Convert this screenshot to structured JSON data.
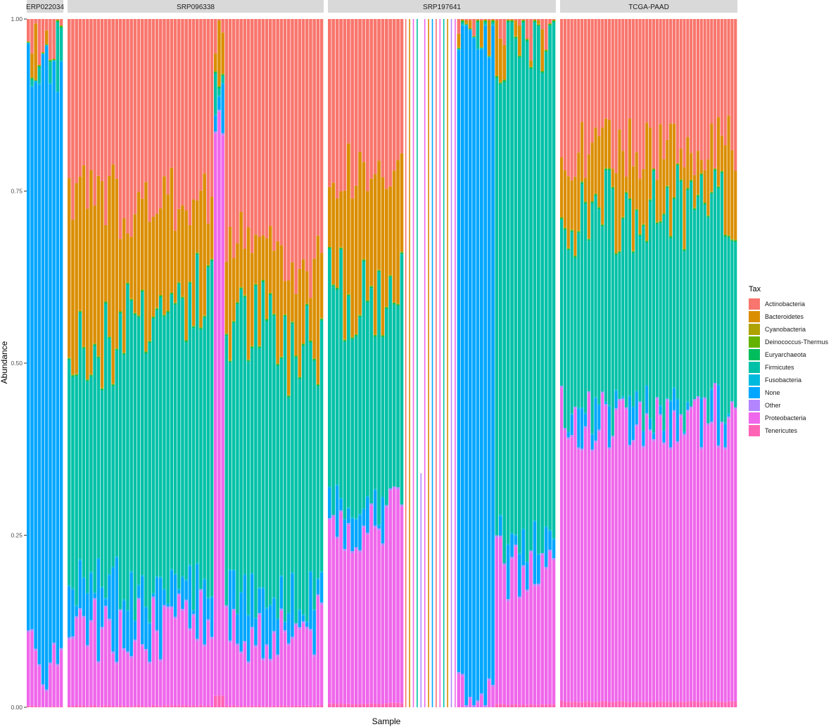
{
  "chart_data": {
    "type": "bar",
    "stacked": true,
    "xlabel": "Sample",
    "ylabel": "Abundance",
    "ylim": [
      0,
      1
    ],
    "yticks": [
      "0.00",
      "0.25",
      "0.50",
      "0.75",
      "1.00"
    ],
    "legend_title": "Tax",
    "legend_position": "right",
    "series": [
      {
        "name": "Actinobacteria",
        "color": "#F8766D"
      },
      {
        "name": "Bacteroidetes",
        "color": "#DB8E00"
      },
      {
        "name": "Cyanobacteria",
        "color": "#AEA200"
      },
      {
        "name": "Deinococcus-Thermus",
        "color": "#64B200"
      },
      {
        "name": "Euryarchaeota",
        "color": "#00BD5C"
      },
      {
        "name": "Firmicutes",
        "color": "#00C1A7"
      },
      {
        "name": "Fusobacteria",
        "color": "#00BADE"
      },
      {
        "name": "None",
        "color": "#00A6FF"
      },
      {
        "name": "Other",
        "color": "#B385FF"
      },
      {
        "name": "Proteobacteria",
        "color": "#EF67EB"
      },
      {
        "name": "Tenericutes",
        "color": "#FF63B6"
      }
    ],
    "panels": [
      {
        "name": "ERP022034",
        "segments": [
          {
            "bars": 10,
            "proteobacteria": 0.07,
            "none_top": 0.93,
            "firmicutes_top": 0.93,
            "bacteroidetes_top": 0.95
          }
        ]
      },
      {
        "name": "SRP096338",
        "segments": [
          {
            "bars": 14,
            "proteobacteria": 0.11,
            "none_top": 0.18,
            "firmicutes_top": 0.52,
            "bacteroidetes_top": 0.74
          },
          {
            "bars": 14,
            "proteobacteria": 0.11,
            "none_top": 0.16,
            "firmicutes_top": 0.58,
            "bacteroidetes_top": 0.73
          },
          {
            "bars": 12,
            "proteobacteria": 0.12,
            "none_top": 0.17,
            "firmicutes_top": 0.6,
            "bacteroidetes_top": 0.74
          },
          {
            "bars": 3,
            "proteobacteria": 0.88,
            "none_top": 0.89,
            "firmicutes_top": 0.93,
            "bacteroidetes_top": 0.98
          },
          {
            "bars": 14,
            "proteobacteria": 0.11,
            "none_top": 0.16,
            "firmicutes_top": 0.56,
            "bacteroidetes_top": 0.68
          },
          {
            "bars": 13,
            "proteobacteria": 0.12,
            "none_top": 0.16,
            "firmicutes_top": 0.52,
            "bacteroidetes_top": 0.64
          }
        ]
      },
      {
        "name": "SRP197641",
        "segments": [
          {
            "bars": 20,
            "proteobacteria": 0.27,
            "none_top": 0.29,
            "firmicutes_top": 0.6,
            "bacteroidetes_top": 0.78
          },
          {
            "bars": 14,
            "type": "single",
            "note": "thin single-taxon bars"
          },
          {
            "bars": 10,
            "proteobacteria": 0.01,
            "none_top": 0.98,
            "firmicutes_top": 0.99,
            "bacteroidetes_top": 0.995
          },
          {
            "bars": 16,
            "proteobacteria": 0.2,
            "none_top": 0.24,
            "firmicutes_top": 0.95,
            "bacteroidetes_top": 0.97
          }
        ]
      },
      {
        "name": "TCGA-PAAD",
        "segments": [
          {
            "bars": 52,
            "proteobacteria": 0.42,
            "none_top": 0.43,
            "firmicutes_top": 0.72,
            "bacteroidetes_top": 0.81
          }
        ]
      }
    ]
  }
}
